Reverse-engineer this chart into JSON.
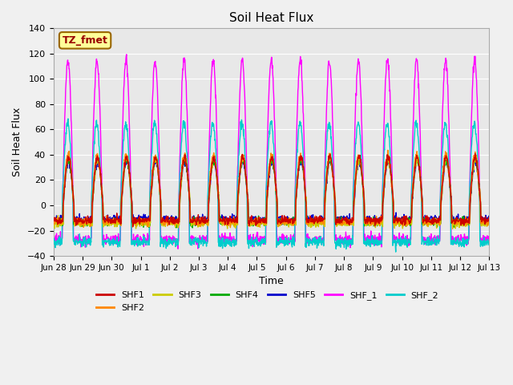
{
  "title": "Soil Heat Flux",
  "ylabel": "Soil Heat Flux",
  "xlabel": "Time",
  "ylim": [
    -40,
    140
  ],
  "yticks": [
    -40,
    -20,
    0,
    20,
    40,
    60,
    80,
    100,
    120,
    140
  ],
  "xtick_labels": [
    "Jun 28",
    "Jun 29",
    "Jun 30",
    "Jul 1",
    "Jul 2",
    "Jul 3",
    "Jul 4",
    "Jul 5",
    "Jul 6",
    "Jul 7",
    "Jul 8",
    "Jul 9",
    "Jul 10",
    "Jul 11",
    "Jul 12",
    "Jul 13"
  ],
  "series_colors": {
    "SHF1": "#cc0000",
    "SHF2": "#ff8800",
    "SHF3": "#cccc00",
    "SHF4": "#00aa00",
    "SHF5": "#0000cc",
    "SHF_1": "#ff00ff",
    "SHF_2": "#00cccc"
  },
  "annotation_text": "TZ_fmet",
  "annotation_bg": "#ffff99",
  "annotation_border": "#996600",
  "fig_bg": "#f0f0f0",
  "ax_bg": "#e8e8e8",
  "n_days": 15,
  "points_per_day": 96
}
